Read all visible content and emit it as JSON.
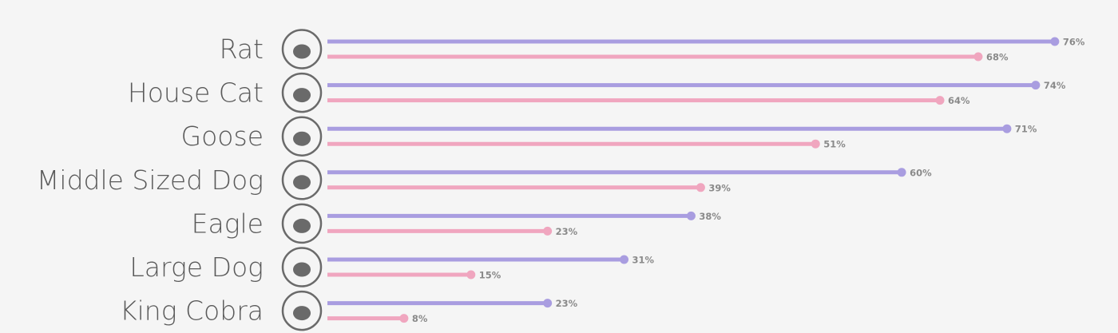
{
  "chart_data": {
    "type": "lollipop",
    "categories": [
      "Rat",
      "House Cat",
      "Goose",
      "Middle Sized Dog",
      "Eagle",
      "Large Dog",
      "King Cobra"
    ],
    "series": [
      {
        "color": "#a99de0",
        "values": [
          76,
          74,
          71,
          60,
          38,
          31,
          23
        ],
        "value_labels": [
          "76%",
          "74%",
          "71%",
          "60%",
          "38%",
          "31%",
          "23%"
        ]
      },
      {
        "color": "#f0a6bf",
        "values": [
          68,
          64,
          51,
          39,
          23,
          15,
          8
        ],
        "value_labels": [
          "68%",
          "64%",
          "51%",
          "39%",
          "23%",
          "15%",
          "8%"
        ]
      }
    ]
  }
}
